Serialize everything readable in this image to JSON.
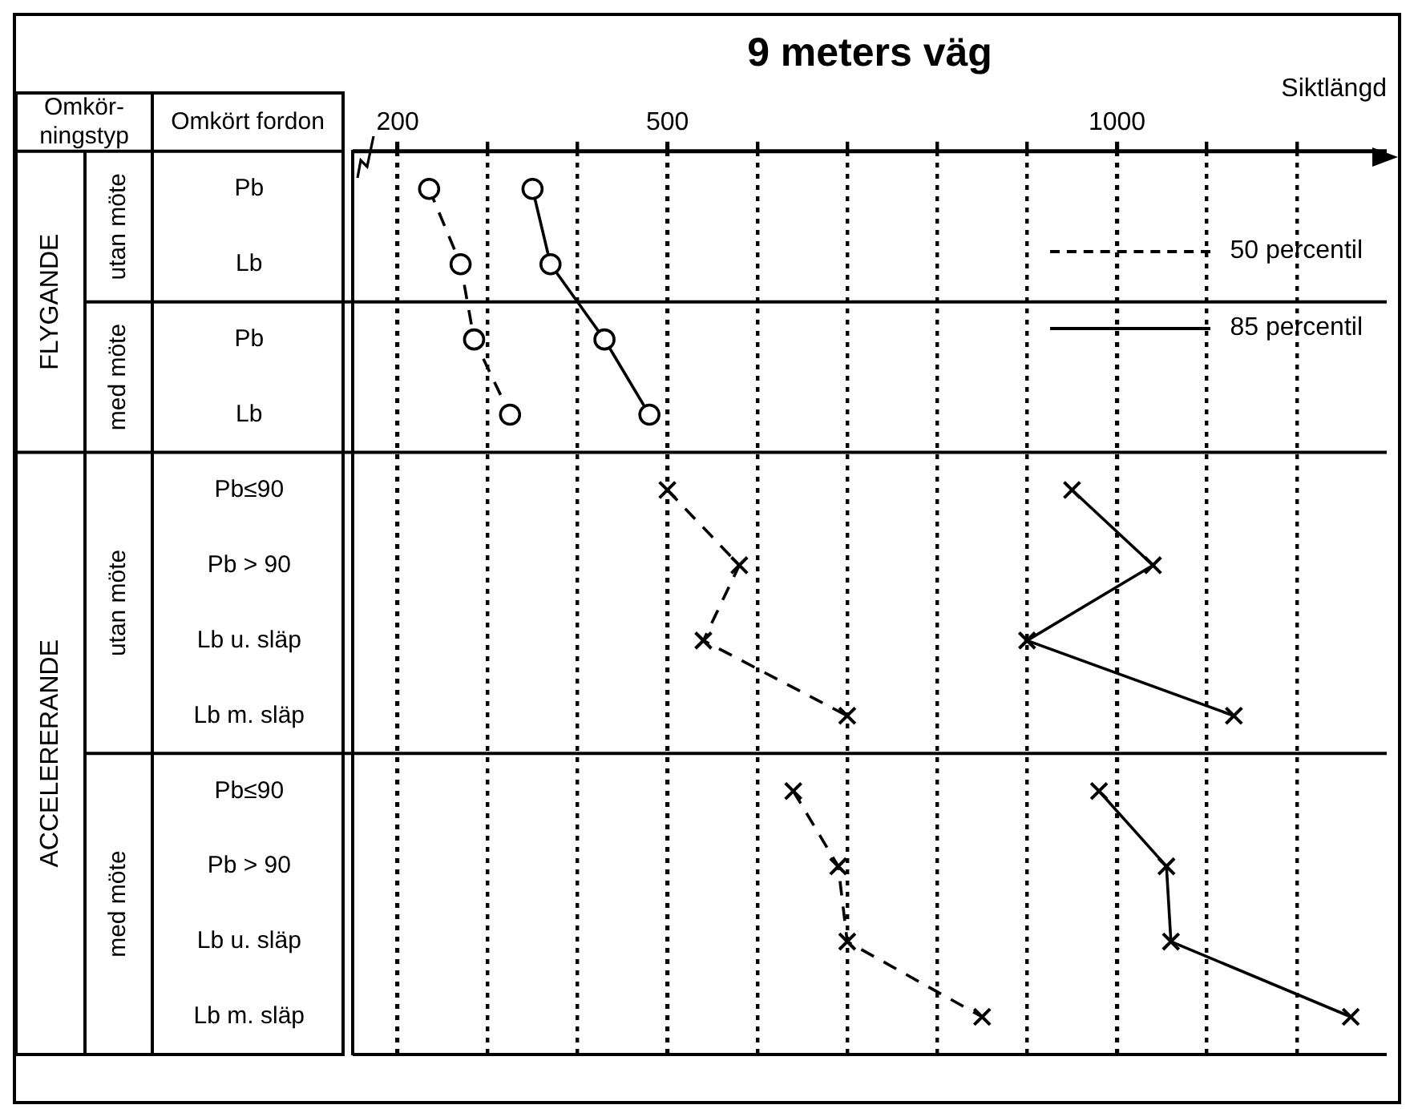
{
  "chart_data": {
    "type": "line",
    "title": "9 meters väg",
    "xlabel": "Siktlängd",
    "ylabel": "Omkört fordon",
    "categories": [
      "Pb",
      "Lb",
      "Pb",
      "Lb",
      "Pb≤90",
      "Pb > 90",
      "Lb u. släp",
      "Lb m. släp",
      "Pb≤90",
      "Pb > 90",
      "Lb u. släp",
      "Lb m. släp"
    ],
    "xlim": [
      150,
      1300
    ],
    "xticks": [
      200,
      {
        "value": 300,
        "label": null
      },
      {
        "value": 400,
        "label": null
      },
      500,
      {
        "value": 600,
        "label": null
      },
      {
        "value": 700,
        "label": null
      },
      {
        "value": 800,
        "label": null
      },
      {
        "value": 900,
        "label": null
      },
      1000,
      {
        "value": 1100,
        "label": null
      },
      {
        "value": 1200,
        "label": null
      }
    ],
    "grid": "x",
    "legend": "top right",
    "orientation": "horizontal",
    "annotations": [
      "Omkör-ningstyp",
      "FLYGANDE",
      "utan möte",
      "med möte",
      "ACCELERERANDE",
      "utan möte",
      "med möte"
    ],
    "series": [
      {
        "name": "50 percentil",
        "color": "#000000",
        "line_style": "dashed",
        "marker": "circle",
        "values": [
          235,
          270,
          285,
          325,
          null,
          null,
          null,
          null,
          null,
          null,
          null,
          null
        ]
      },
      {
        "name": "85 percentil",
        "color": "#000000",
        "line_style": "solid",
        "marker": "circle",
        "values": [
          350,
          370,
          430,
          480,
          null,
          null,
          null,
          null,
          null,
          null,
          null,
          null
        ]
      },
      {
        "color": "#000000",
        "line_style": "dashed",
        "marker": "cross",
        "values": [
          null,
          null,
          null,
          null,
          500,
          580,
          540,
          700,
          null,
          null,
          null,
          null
        ]
      },
      {
        "color": "#000000",
        "line_style": "solid",
        "marker": "cross",
        "values": [
          null,
          null,
          null,
          null,
          950,
          1040,
          900,
          1130,
          null,
          null,
          null,
          null
        ]
      },
      {
        "color": "#000000",
        "line_style": "dashed",
        "marker": "cross",
        "values": [
          null,
          null,
          null,
          null,
          null,
          null,
          null,
          null,
          640,
          690,
          700,
          850
        ]
      },
      {
        "color": "#000000",
        "line_style": "solid",
        "marker": "cross",
        "values": [
          null,
          null,
          null,
          null,
          null,
          null,
          null,
          null,
          980,
          1055,
          1060,
          1260
        ]
      }
    ]
  }
}
